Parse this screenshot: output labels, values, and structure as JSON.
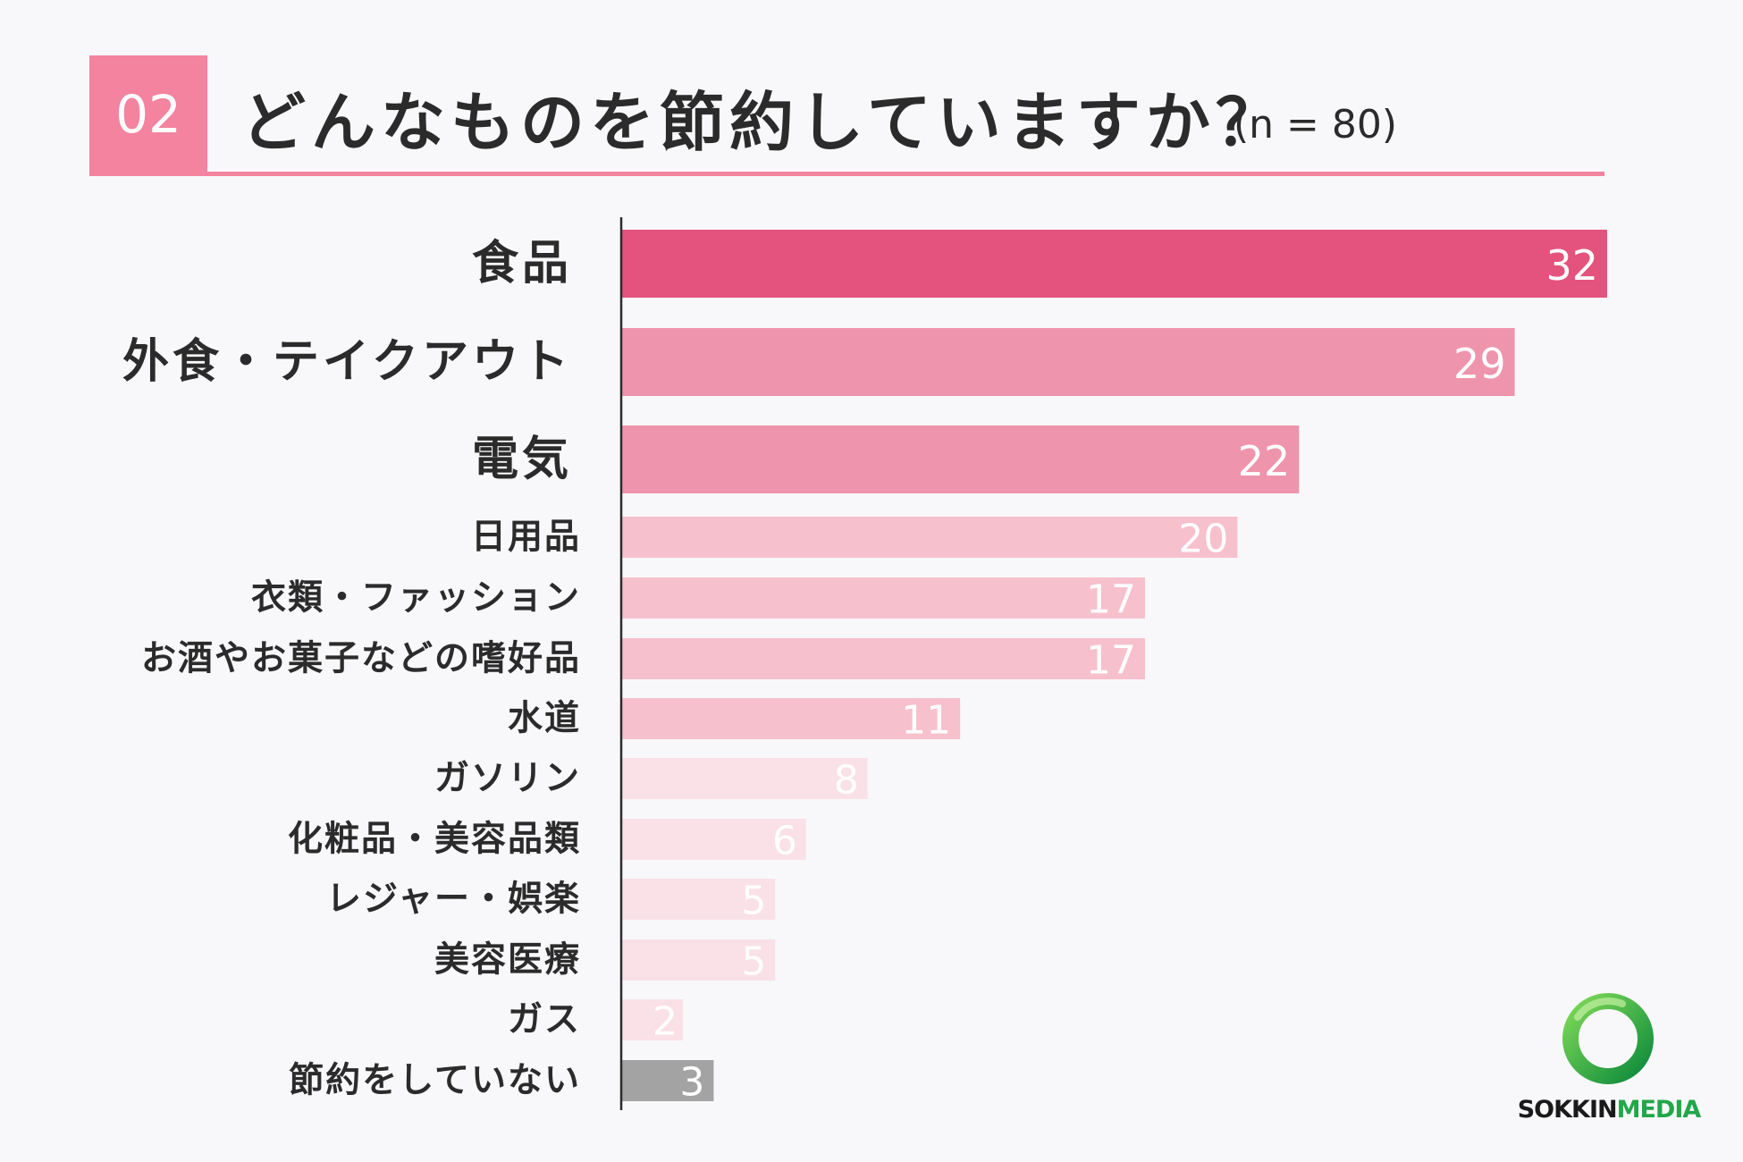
{
  "header": {
    "number": "02",
    "title": "どんなものを節約していますか？",
    "sample": "(n = 80)"
  },
  "chart_data": {
    "type": "bar",
    "orientation": "horizontal",
    "title": "どんなものを節約していますか？",
    "xlim": [
      0,
      32
    ],
    "categories": [
      "食品",
      "外食・テイクアウト",
      "電気",
      "日用品",
      "衣類・ファッション",
      "お酒やお菓子などの嗜好品",
      "水道",
      "ガソリン",
      "化粧品・美容品類",
      "レジャー・娯楽",
      "美容医療",
      "ガス",
      "節約をしていない"
    ],
    "values": [
      32,
      29,
      22,
      20,
      17,
      17,
      11,
      8,
      6,
      5,
      5,
      2,
      3
    ],
    "colors": [
      "#e4537d",
      "#ef94ad",
      "#ef94ad",
      "#f7c0cd",
      "#f7c0cd",
      "#f7c0cd",
      "#f7c0cd",
      "#fae1e7",
      "#fae1e7",
      "#fae1e7",
      "#fae1e7",
      "#fae1e7",
      "#a3a3a3"
    ]
  },
  "logo": {
    "part1": "SOKKIN",
    "part2": "MEDIA"
  },
  "colors": {
    "accent": "#f4839f",
    "text": "#2b2b2b",
    "logo_green": "#22a74a"
  }
}
